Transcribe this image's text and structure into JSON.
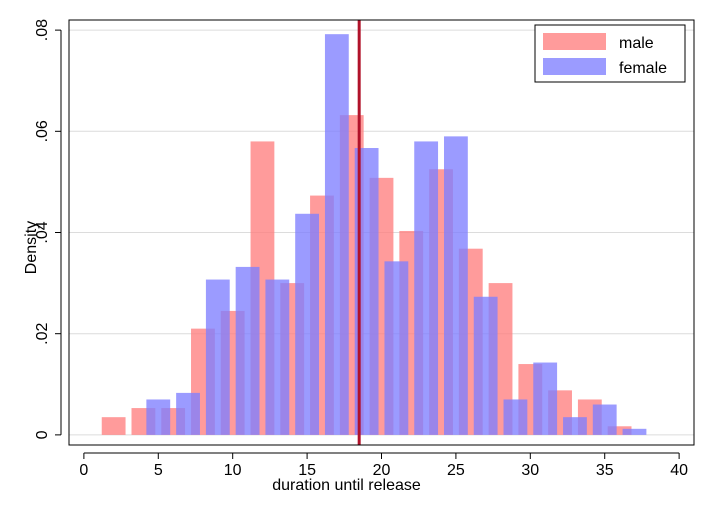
{
  "chart_data": {
    "type": "bar",
    "subtype": "overlaid-histogram",
    "xlabel": "duration until release",
    "ylabel": "Density",
    "xlim": [
      -1,
      41
    ],
    "ylim": [
      -0.002,
      0.082
    ],
    "x_ticks": [
      0,
      5,
      10,
      15,
      20,
      25,
      30,
      35,
      40
    ],
    "x_tick_labels": [
      "0",
      "5",
      "10",
      "15",
      "20",
      "25",
      "30",
      "35",
      "40"
    ],
    "y_ticks": [
      0,
      0.02,
      0.04,
      0.06,
      0.08
    ],
    "y_tick_labels": [
      "0",
      ".02",
      ".04",
      ".06",
      ".08"
    ],
    "grid": "horizontal",
    "legend_position": "top-right",
    "reference_line": {
      "x": 18.5,
      "color": "#b0122a"
    },
    "series": [
      {
        "name": "male",
        "color": "#ff7f7f",
        "bin_width": 1.6,
        "bars": [
          {
            "x": 2.0,
            "y": 0.0035
          },
          {
            "x": 4.0,
            "y": 0.0053
          },
          {
            "x": 6.0,
            "y": 0.0053
          },
          {
            "x": 8.0,
            "y": 0.021
          },
          {
            "x": 10.0,
            "y": 0.0245
          },
          {
            "x": 12.0,
            "y": 0.058
          },
          {
            "x": 14.0,
            "y": 0.03
          },
          {
            "x": 16.0,
            "y": 0.0473
          },
          {
            "x": 18.0,
            "y": 0.0632
          },
          {
            "x": 20.0,
            "y": 0.0508
          },
          {
            "x": 22.0,
            "y": 0.0403
          },
          {
            "x": 24.0,
            "y": 0.0525
          },
          {
            "x": 26.0,
            "y": 0.0368
          },
          {
            "x": 28.0,
            "y": 0.03
          },
          {
            "x": 30.0,
            "y": 0.014
          },
          {
            "x": 32.0,
            "y": 0.0088
          },
          {
            "x": 34.0,
            "y": 0.007
          },
          {
            "x": 36.0,
            "y": 0.0017
          }
        ]
      },
      {
        "name": "female",
        "color": "#7f7fff",
        "bin_width": 1.6,
        "bars": [
          {
            "x": 5.0,
            "y": 0.007
          },
          {
            "x": 7.0,
            "y": 0.0083
          },
          {
            "x": 9.0,
            "y": 0.0307
          },
          {
            "x": 11.0,
            "y": 0.0332
          },
          {
            "x": 13.0,
            "y": 0.0307
          },
          {
            "x": 15.0,
            "y": 0.0437
          },
          {
            "x": 17.0,
            "y": 0.0792
          },
          {
            "x": 19.0,
            "y": 0.0567
          },
          {
            "x": 21.0,
            "y": 0.0343
          },
          {
            "x": 23.0,
            "y": 0.058
          },
          {
            "x": 25.0,
            "y": 0.059
          },
          {
            "x": 27.0,
            "y": 0.0273
          },
          {
            "x": 29.0,
            "y": 0.007
          },
          {
            "x": 31.0,
            "y": 0.0143
          },
          {
            "x": 33.0,
            "y": 0.0035
          },
          {
            "x": 35.0,
            "y": 0.006
          },
          {
            "x": 37.0,
            "y": 0.0012
          }
        ]
      }
    ]
  }
}
